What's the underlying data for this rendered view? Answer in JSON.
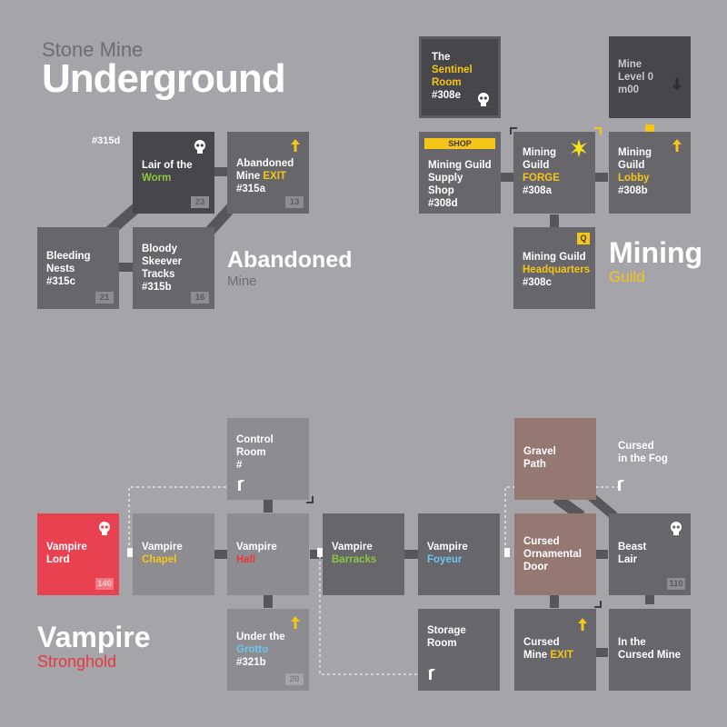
{
  "title": {
    "small": "Stone Mine",
    "large": "Underground"
  },
  "sections": {
    "abandoned": {
      "name": "Abandoned",
      "sub": "Mine"
    },
    "mining": {
      "name": "Mining",
      "sub": "Guild"
    },
    "vampire": {
      "name": "Vampire",
      "sub": "Stronghold"
    }
  },
  "colors": {
    "background": "#a5a4a9",
    "accent_yellow": "#f5c518",
    "vampire_red": "#e8383d",
    "gravel_brown": "#967872",
    "green": "#8dc63f",
    "blue": "#6cc6f0"
  },
  "rooms": {
    "label_315d": "#315d",
    "lair_worm": {
      "l1": "Lair of the",
      "l2": "Worm",
      "num": "23"
    },
    "abandoned_exit": {
      "l1": "Abandoned",
      "l2a": "Mine ",
      "l2b": "EXIT",
      "l3": "#315a",
      "num": "13"
    },
    "bleeding_nests": {
      "l1": "Bleeding",
      "l2": "Nests",
      "l3": "#315c",
      "num": "21"
    },
    "bloody_skeever": {
      "l1": "Bloody",
      "l2": "Skeever",
      "l3": "Tracks",
      "l4": "#315b",
      "num": "16"
    },
    "sentinel": {
      "l1": "The",
      "l2": "Sentinel",
      "l3": "Room",
      "l4": "#308e"
    },
    "mine_level0": {
      "l1": "Mine",
      "l2": "Level 0",
      "l3": "m00"
    },
    "supply_shop": {
      "badge": "SHOP",
      "l1": "Mining Guild",
      "l2": "Supply Shop",
      "l3": "#308d"
    },
    "forge": {
      "l1": "Mining",
      "l2": "Guild",
      "l3": "FORGE",
      "l4": "#308a"
    },
    "lobby": {
      "l1": "Mining",
      "l2": "Guild",
      "l3": "Lobby",
      "l4": "#308b"
    },
    "headquarters": {
      "badge": "Q",
      "l1": "Mining Guild",
      "l2": "Headquarters",
      "l3": "#308c"
    },
    "control_room": {
      "l1": "Control",
      "l2": "Room",
      "l3": "#"
    },
    "gravel_path": {
      "l1": "Gravel",
      "l2": "Path"
    },
    "cursed_fog": {
      "l1": "Cursed",
      "l2": "in the Fog"
    },
    "vampire_lord": {
      "l1": "Vampire",
      "l2": "Lord",
      "num": "140"
    },
    "vampire_chapel": {
      "l1": "Vampire",
      "l2": "Chapel"
    },
    "vampire_hall": {
      "l1": "Vampire",
      "l2": "Hall"
    },
    "vampire_barracks": {
      "l1": "Vampire",
      "l2": "Barracks"
    },
    "vampire_foyeur": {
      "l1": "Vampire",
      "l2": "Foyeur"
    },
    "cursed_ornamental": {
      "l1": "Cursed",
      "l2": "Ornamental",
      "l3": "Door"
    },
    "beast_lair": {
      "l1": "Beast",
      "l2": "Lair",
      "num": "110"
    },
    "under_grotto": {
      "l1": "Under the",
      "l2": "Grotto",
      "l3": "#321b",
      "num": "20"
    },
    "storage_room": {
      "l1": "Storage",
      "l2": "Room"
    },
    "cursed_exit": {
      "l1": "Cursed",
      "l2a": "Mine ",
      "l2b": "EXIT"
    },
    "cursed_mine": {
      "l1": "In the",
      "l2": "Cursed Mine"
    }
  }
}
